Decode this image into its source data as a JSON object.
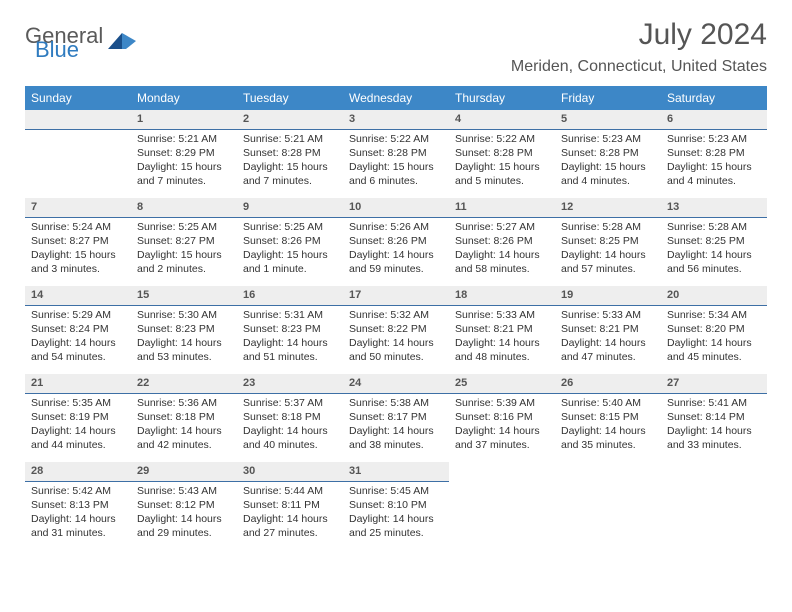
{
  "brand": {
    "text1": "General",
    "text2": "Blue"
  },
  "title": "July 2024",
  "location": "Meriden, Connecticut, United States",
  "colors": {
    "header_bg": "#3d87c7",
    "header_text": "#ffffff",
    "daynum_bg": "#eeeeee",
    "daynum_border": "#3d6fa5",
    "body_text": "#333333",
    "logo_gray": "#5a5a5a",
    "logo_blue": "#2f7bbf"
  },
  "weekdays": [
    "Sunday",
    "Monday",
    "Tuesday",
    "Wednesday",
    "Thursday",
    "Friday",
    "Saturday"
  ],
  "start_offset": 1,
  "days": [
    {
      "n": 1,
      "sr": "5:21 AM",
      "ss": "8:29 PM",
      "dl": "15 hours and 7 minutes."
    },
    {
      "n": 2,
      "sr": "5:21 AM",
      "ss": "8:28 PM",
      "dl": "15 hours and 7 minutes."
    },
    {
      "n": 3,
      "sr": "5:22 AM",
      "ss": "8:28 PM",
      "dl": "15 hours and 6 minutes."
    },
    {
      "n": 4,
      "sr": "5:22 AM",
      "ss": "8:28 PM",
      "dl": "15 hours and 5 minutes."
    },
    {
      "n": 5,
      "sr": "5:23 AM",
      "ss": "8:28 PM",
      "dl": "15 hours and 4 minutes."
    },
    {
      "n": 6,
      "sr": "5:23 AM",
      "ss": "8:28 PM",
      "dl": "15 hours and 4 minutes."
    },
    {
      "n": 7,
      "sr": "5:24 AM",
      "ss": "8:27 PM",
      "dl": "15 hours and 3 minutes."
    },
    {
      "n": 8,
      "sr": "5:25 AM",
      "ss": "8:27 PM",
      "dl": "15 hours and 2 minutes."
    },
    {
      "n": 9,
      "sr": "5:25 AM",
      "ss": "8:26 PM",
      "dl": "15 hours and 1 minute."
    },
    {
      "n": 10,
      "sr": "5:26 AM",
      "ss": "8:26 PM",
      "dl": "14 hours and 59 minutes."
    },
    {
      "n": 11,
      "sr": "5:27 AM",
      "ss": "8:26 PM",
      "dl": "14 hours and 58 minutes."
    },
    {
      "n": 12,
      "sr": "5:28 AM",
      "ss": "8:25 PM",
      "dl": "14 hours and 57 minutes."
    },
    {
      "n": 13,
      "sr": "5:28 AM",
      "ss": "8:25 PM",
      "dl": "14 hours and 56 minutes."
    },
    {
      "n": 14,
      "sr": "5:29 AM",
      "ss": "8:24 PM",
      "dl": "14 hours and 54 minutes."
    },
    {
      "n": 15,
      "sr": "5:30 AM",
      "ss": "8:23 PM",
      "dl": "14 hours and 53 minutes."
    },
    {
      "n": 16,
      "sr": "5:31 AM",
      "ss": "8:23 PM",
      "dl": "14 hours and 51 minutes."
    },
    {
      "n": 17,
      "sr": "5:32 AM",
      "ss": "8:22 PM",
      "dl": "14 hours and 50 minutes."
    },
    {
      "n": 18,
      "sr": "5:33 AM",
      "ss": "8:21 PM",
      "dl": "14 hours and 48 minutes."
    },
    {
      "n": 19,
      "sr": "5:33 AM",
      "ss": "8:21 PM",
      "dl": "14 hours and 47 minutes."
    },
    {
      "n": 20,
      "sr": "5:34 AM",
      "ss": "8:20 PM",
      "dl": "14 hours and 45 minutes."
    },
    {
      "n": 21,
      "sr": "5:35 AM",
      "ss": "8:19 PM",
      "dl": "14 hours and 44 minutes."
    },
    {
      "n": 22,
      "sr": "5:36 AM",
      "ss": "8:18 PM",
      "dl": "14 hours and 42 minutes."
    },
    {
      "n": 23,
      "sr": "5:37 AM",
      "ss": "8:18 PM",
      "dl": "14 hours and 40 minutes."
    },
    {
      "n": 24,
      "sr": "5:38 AM",
      "ss": "8:17 PM",
      "dl": "14 hours and 38 minutes."
    },
    {
      "n": 25,
      "sr": "5:39 AM",
      "ss": "8:16 PM",
      "dl": "14 hours and 37 minutes."
    },
    {
      "n": 26,
      "sr": "5:40 AM",
      "ss": "8:15 PM",
      "dl": "14 hours and 35 minutes."
    },
    {
      "n": 27,
      "sr": "5:41 AM",
      "ss": "8:14 PM",
      "dl": "14 hours and 33 minutes."
    },
    {
      "n": 28,
      "sr": "5:42 AM",
      "ss": "8:13 PM",
      "dl": "14 hours and 31 minutes."
    },
    {
      "n": 29,
      "sr": "5:43 AM",
      "ss": "8:12 PM",
      "dl": "14 hours and 29 minutes."
    },
    {
      "n": 30,
      "sr": "5:44 AM",
      "ss": "8:11 PM",
      "dl": "14 hours and 27 minutes."
    },
    {
      "n": 31,
      "sr": "5:45 AM",
      "ss": "8:10 PM",
      "dl": "14 hours and 25 minutes."
    }
  ],
  "labels": {
    "sunrise": "Sunrise:",
    "sunset": "Sunset:",
    "daylight": "Daylight:"
  }
}
